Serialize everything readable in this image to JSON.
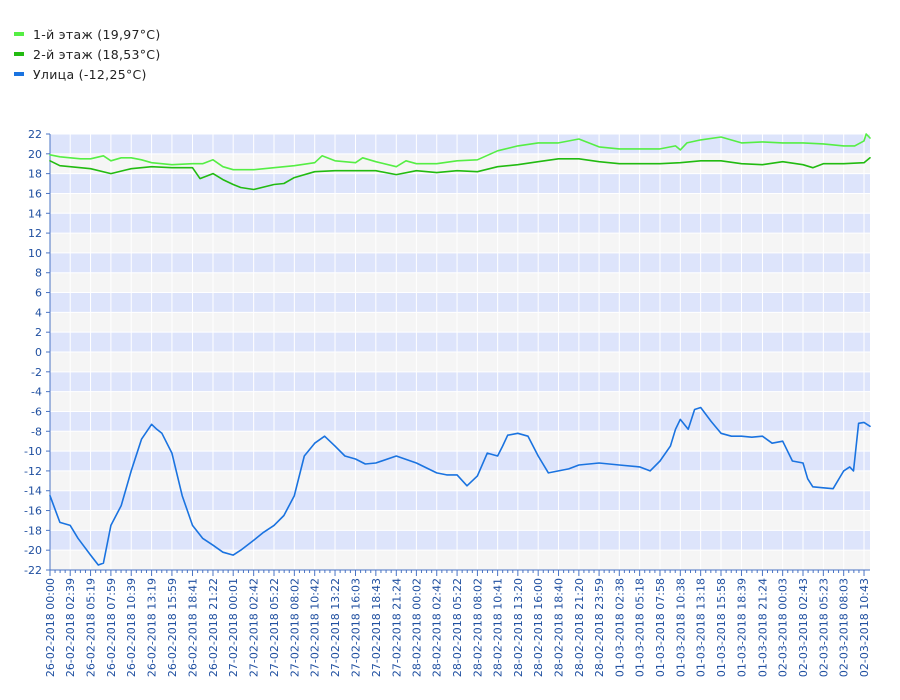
{
  "colors": {
    "band_a": "#dde4fb",
    "band_b": "#f5f5f5",
    "grid": "#ffffff",
    "axis": "#4a74c4",
    "tick_text": "#1f4fa0",
    "series_1": "#55ee44",
    "series_2": "#22bb11",
    "series_3": "#1a73e0"
  },
  "legend": [
    {
      "label": "1-й этаж (19,97°C)",
      "color": "#55ee44"
    },
    {
      "label": "2-й этаж (18,53°C)",
      "color": "#22bb11"
    },
    {
      "label": "Улица (-12,25°C)",
      "color": "#1a73e0"
    }
  ],
  "chart_data": {
    "type": "line",
    "title": "",
    "xlabel": "",
    "ylabel": "",
    "ylim": [
      -22,
      22
    ],
    "y_ticks": [
      22,
      20,
      18,
      16,
      14,
      12,
      10,
      8,
      6,
      4,
      2,
      0,
      -2,
      -4,
      -6,
      -8,
      -10,
      -12,
      -14,
      -16,
      -18,
      -20,
      -22
    ],
    "x_range": [
      "26-02-2018 00:00",
      "02-03-2018 11:30"
    ],
    "x_tick_labels": [
      "26-02-2018 00:00",
      "26-02-2018 02:39",
      "26-02-2018 05:19",
      "26-02-2018 07:59",
      "26-02-2018 10:39",
      "26-02-2018 13:19",
      "26-02-2018 15:59",
      "26-02-2018 18:41",
      "26-02-2018 21:22",
      "27-02-2018 00:01",
      "27-02-2018 02:42",
      "27-02-2018 05:22",
      "27-02-2018 08:02",
      "27-02-2018 10:42",
      "27-02-2018 13:22",
      "27-02-2018 16:03",
      "27-02-2018 18:43",
      "27-02-2018 21:24",
      "28-02-2018 00:02",
      "28-02-2018 02:42",
      "28-02-2018 05:22",
      "28-02-2018 08:02",
      "28-02-2018 10:41",
      "28-02-2018 13:20",
      "28-02-2018 16:00",
      "28-02-2018 18:40",
      "28-02-2018 21:20",
      "28-02-2018 23:59",
      "01-03-2018 02:38",
      "01-03-2018 05:18",
      "01-03-2018 07:58",
      "01-03-2018 10:38",
      "01-03-2018 13:18",
      "01-03-2018 15:58",
      "01-03-2018 18:39",
      "01-03-2018 21:24",
      "02-03-2018 00:03",
      "02-03-2018 02:43",
      "02-03-2018 05:23",
      "02-03-2018 08:03",
      "02-03-2018 10:43"
    ],
    "grid": true,
    "legend_position": "top-left",
    "series": [
      {
        "name": "1-й этаж (19,97°C)",
        "x": [
          "26-02-2018 00:00",
          "26-02-2018 01:18",
          "26-02-2018 02:39",
          "26-02-2018 04:00",
          "26-02-2018 05:19",
          "26-02-2018 07:00",
          "26-02-2018 07:59",
          "26-02-2018 09:20",
          "26-02-2018 10:39",
          "26-02-2018 12:00",
          "26-02-2018 13:19",
          "26-02-2018 15:59",
          "26-02-2018 18:41",
          "26-02-2018 20:00",
          "26-02-2018 21:22",
          "26-02-2018 22:40",
          "27-02-2018 00:01",
          "27-02-2018 02:42",
          "27-02-2018 05:22",
          "27-02-2018 08:02",
          "27-02-2018 10:42",
          "27-02-2018 11:40",
          "27-02-2018 13:22",
          "27-02-2018 16:03",
          "27-02-2018 17:00",
          "27-02-2018 18:43",
          "27-02-2018 21:24",
          "27-02-2018 22:40",
          "28-02-2018 00:02",
          "28-02-2018 02:42",
          "28-02-2018 05:22",
          "28-02-2018 08:02",
          "28-02-2018 10:41",
          "28-02-2018 13:20",
          "28-02-2018 16:00",
          "28-02-2018 18:40",
          "28-02-2018 21:20",
          "28-02-2018 23:59",
          "01-03-2018 02:38",
          "01-03-2018 05:18",
          "01-03-2018 07:58",
          "01-03-2018 10:00",
          "01-03-2018 10:38",
          "01-03-2018 11:30",
          "01-03-2018 13:18",
          "01-03-2018 15:58",
          "01-03-2018 18:39",
          "01-03-2018 21:24",
          "02-03-2018 00:03",
          "02-03-2018 02:43",
          "02-03-2018 05:23",
          "02-03-2018 08:03",
          "02-03-2018 09:30",
          "02-03-2018 10:43",
          "02-03-2018 11:00",
          "02-03-2018 11:30"
        ],
        "y": [
          19.9,
          19.7,
          19.6,
          19.5,
          19.5,
          19.8,
          19.3,
          19.6,
          19.6,
          19.4,
          19.1,
          18.9,
          19.0,
          19.0,
          19.4,
          18.7,
          18.4,
          18.4,
          18.6,
          18.8,
          19.1,
          19.8,
          19.3,
          19.1,
          19.6,
          19.2,
          18.7,
          19.3,
          19.0,
          19.0,
          19.3,
          19.4,
          20.3,
          20.8,
          21.1,
          21.1,
          21.5,
          20.7,
          20.5,
          20.5,
          20.5,
          20.8,
          20.4,
          21.1,
          21.4,
          21.7,
          21.1,
          21.2,
          21.1,
          21.1,
          21.0,
          20.8,
          20.8,
          21.3,
          22.0,
          21.6
        ]
      },
      {
        "name": "2-й этаж (18,53°C)",
        "x": [
          "26-02-2018 00:00",
          "26-02-2018 01:18",
          "26-02-2018 02:39",
          "26-02-2018 05:19",
          "26-02-2018 07:59",
          "26-02-2018 10:39",
          "26-02-2018 13:19",
          "26-02-2018 15:59",
          "26-02-2018 18:41",
          "26-02-2018 19:40",
          "26-02-2018 21:22",
          "26-02-2018 22:40",
          "27-02-2018 00:01",
          "27-02-2018 01:00",
          "27-02-2018 02:42",
          "27-02-2018 05:22",
          "27-02-2018 06:40",
          "27-02-2018 08:02",
          "27-02-2018 10:42",
          "27-02-2018 13:22",
          "27-02-2018 16:03",
          "27-02-2018 18:43",
          "27-02-2018 21:24",
          "28-02-2018 00:02",
          "28-02-2018 02:42",
          "28-02-2018 05:22",
          "28-02-2018 08:02",
          "28-02-2018 10:41",
          "28-02-2018 13:20",
          "28-02-2018 16:00",
          "28-02-2018 18:40",
          "28-02-2018 21:20",
          "28-02-2018 23:59",
          "01-03-2018 02:38",
          "01-03-2018 05:18",
          "01-03-2018 07:58",
          "01-03-2018 10:38",
          "01-03-2018 13:18",
          "01-03-2018 15:58",
          "01-03-2018 18:39",
          "01-03-2018 21:24",
          "02-03-2018 00:03",
          "02-03-2018 02:43",
          "02-03-2018 04:00",
          "02-03-2018 05:23",
          "02-03-2018 08:03",
          "02-03-2018 10:43",
          "02-03-2018 11:30"
        ],
        "y": [
          19.3,
          18.8,
          18.7,
          18.5,
          18.0,
          18.5,
          18.7,
          18.6,
          18.6,
          17.5,
          18.0,
          17.4,
          16.9,
          16.6,
          16.4,
          16.9,
          17.0,
          17.6,
          18.2,
          18.3,
          18.3,
          18.3,
          17.9,
          18.3,
          18.1,
          18.3,
          18.2,
          18.7,
          18.9,
          19.2,
          19.5,
          19.5,
          19.2,
          19.0,
          19.0,
          19.0,
          19.1,
          19.3,
          19.3,
          19.0,
          18.9,
          19.2,
          18.9,
          18.6,
          19.0,
          19.0,
          19.1,
          19.6
        ]
      },
      {
        "name": "Улица (-12,25°C)",
        "x": [
          "26-02-2018 00:00",
          "26-02-2018 01:18",
          "26-02-2018 02:39",
          "26-02-2018 03:40",
          "26-02-2018 05:19",
          "26-02-2018 06:20",
          "26-02-2018 07:00",
          "26-02-2018 07:59",
          "26-02-2018 09:20",
          "26-02-2018 10:39",
          "26-02-2018 12:00",
          "26-02-2018 13:19",
          "26-02-2018 14:00",
          "26-02-2018 14:40",
          "26-02-2018 15:59",
          "26-02-2018 17:20",
          "26-02-2018 18:41",
          "26-02-2018 20:00",
          "26-02-2018 21:22",
          "26-02-2018 22:40",
          "27-02-2018 00:01",
          "27-02-2018 01:00",
          "27-02-2018 02:42",
          "27-02-2018 04:00",
          "27-02-2018 05:22",
          "27-02-2018 06:40",
          "27-02-2018 08:02",
          "27-02-2018 09:20",
          "27-02-2018 10:42",
          "27-02-2018 12:00",
          "27-02-2018 13:22",
          "27-02-2018 14:40",
          "27-02-2018 16:03",
          "27-02-2018 17:20",
          "27-02-2018 18:43",
          "27-02-2018 21:24",
          "28-02-2018 00:02",
          "28-02-2018 02:42",
          "28-02-2018 04:00",
          "28-02-2018 05:22",
          "28-02-2018 06:40",
          "28-02-2018 08:02",
          "28-02-2018 09:20",
          "28-02-2018 10:41",
          "28-02-2018 11:20",
          "28-02-2018 12:00",
          "28-02-2018 13:20",
          "28-02-2018 14:40",
          "28-02-2018 16:00",
          "28-02-2018 17:20",
          "28-02-2018 18:40",
          "28-02-2018 20:00",
          "28-02-2018 21:20",
          "28-02-2018 22:40",
          "28-02-2018 23:59",
          "01-03-2018 02:38",
          "01-03-2018 05:18",
          "01-03-2018 06:40",
          "01-03-2018 07:58",
          "01-03-2018 09:20",
          "01-03-2018 10:00",
          "01-03-2018 10:38",
          "01-03-2018 11:40",
          "01-03-2018 12:30",
          "01-03-2018 13:18",
          "01-03-2018 14:40",
          "01-03-2018 15:58",
          "01-03-2018 17:20",
          "01-03-2018 18:39",
          "01-03-2018 20:00",
          "01-03-2018 21:24",
          "01-03-2018 22:40",
          "02-03-2018 00:03",
          "02-03-2018 01:20",
          "02-03-2018 02:43",
          "02-03-2018 03:20",
          "02-03-2018 04:00",
          "02-03-2018 05:23",
          "02-03-2018 06:40",
          "02-03-2018 08:03",
          "02-03-2018 08:50",
          "02-03-2018 09:20",
          "02-03-2018 10:00",
          "02-03-2018 10:43",
          "02-03-2018 11:30"
        ],
        "y": [
          -14.5,
          -17.2,
          -17.5,
          -18.8,
          -20.5,
          -21.5,
          -21.3,
          -17.5,
          -15.5,
          -12.0,
          -8.8,
          -7.3,
          -7.8,
          -8.2,
          -10.2,
          -14.5,
          -17.5,
          -18.8,
          -19.5,
          -20.2,
          -20.5,
          -20.0,
          -19.0,
          -18.2,
          -17.5,
          -16.5,
          -14.5,
          -10.5,
          -9.2,
          -8.5,
          -9.5,
          -10.5,
          -10.8,
          -11.3,
          -11.2,
          -10.5,
          -11.2,
          -12.2,
          -12.4,
          -12.4,
          -13.5,
          -12.5,
          -10.2,
          -10.5,
          -9.5,
          -8.4,
          -8.2,
          -8.5,
          -10.5,
          -12.2,
          -12.0,
          -11.8,
          -11.4,
          -11.3,
          -11.2,
          -11.4,
          -11.6,
          -12.0,
          -11.0,
          -9.5,
          -7.8,
          -6.8,
          -7.8,
          -5.8,
          -5.6,
          -7.0,
          -8.2,
          -8.5,
          -8.5,
          -8.6,
          -8.5,
          -9.2,
          -9.0,
          -11.0,
          -11.2,
          -12.8,
          -13.6,
          -13.7,
          -13.8,
          -12.0,
          -11.6,
          -12.0,
          -7.2,
          -7.1,
          -7.5
        ]
      }
    ]
  }
}
